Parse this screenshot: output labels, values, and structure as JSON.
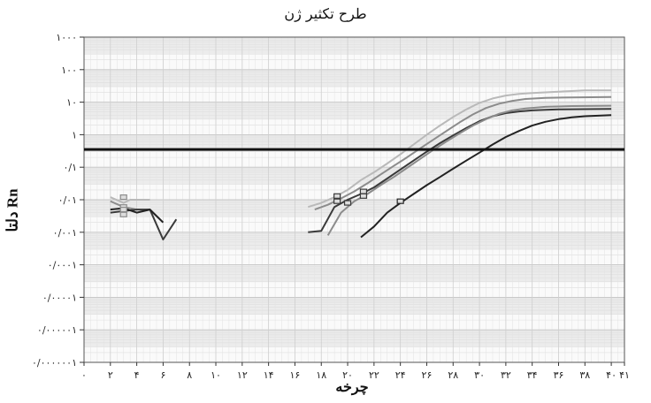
{
  "chart_data": {
    "type": "line",
    "title": "طرح تکثیر ژن",
    "xlabel": "چرخه",
    "ylabel": "دلتا Rn",
    "y_scale": "log",
    "xlim": [
      0,
      41
    ],
    "ylim": [
      1e-07,
      1000
    ],
    "x_ticks": [
      "۰",
      "۲",
      "۴",
      "۶",
      "۸",
      "۱۰",
      "۱۲",
      "۱۴",
      "۱۶",
      "۱۸",
      "۲۰",
      "۲۲",
      "۲۴",
      "۲۶",
      "۲۸",
      "۳۰",
      "۳۲",
      "۳۴",
      "۳۶",
      "۳۸",
      "۴۰",
      "۴۱"
    ],
    "x_tick_values": [
      0,
      2,
      4,
      6,
      8,
      10,
      12,
      14,
      16,
      18,
      20,
      22,
      24,
      26,
      28,
      30,
      32,
      34,
      36,
      38,
      40,
      41
    ],
    "y_ticks": [
      "۱۰۰۰",
      "۱۰۰",
      "۱۰",
      "۱",
      "۰/۱",
      "۰/۰۱",
      "۰/۰۰۱",
      "۰/۰۰۰۱",
      "۰/۰۰۰۰۱",
      "۰/۰۰۰۰۰۱",
      "۰/۰۰۰۰۰۰۱"
    ],
    "y_tick_values": [
      1000,
      100,
      10,
      1,
      0.1,
      0.01,
      0.001,
      0.0001,
      1e-05,
      1e-06,
      1e-07
    ],
    "threshold": 0.35,
    "grid": true,
    "colors": {
      "light": "#b9b9b9",
      "medium": "#8c8c8c",
      "dark": "#3a3a3a",
      "darker": "#222222",
      "threshold": "#111111",
      "grid": "#cfcfcf",
      "band": "#ececec"
    },
    "series": [
      {
        "color": "light",
        "x": [
          2,
          3,
          3.5,
          5
        ],
        "y": [
          0.012,
          0.008,
          0.01,
          0.01
        ]
      },
      {
        "color": "medium",
        "x": [
          2,
          3,
          4,
          5,
          6
        ],
        "y": [
          0.009,
          0.006,
          0.005,
          0.005,
          0.002
        ]
      },
      {
        "color": "dark",
        "x": [
          2,
          3,
          4,
          5,
          6,
          7
        ],
        "y": [
          0.004,
          0.0045,
          0.005,
          0.005,
          0.0006,
          0.0025
        ]
      },
      {
        "color": "darker",
        "x": [
          2,
          3,
          4,
          5,
          6
        ],
        "y": [
          0.005,
          0.0055,
          0.004,
          0.005,
          0.002
        ]
      },
      {
        "color": "light",
        "x": [
          17,
          18,
          19,
          20,
          21,
          22,
          23,
          24,
          25,
          26,
          27,
          28,
          29,
          30,
          31,
          32,
          33,
          34,
          35,
          36,
          37,
          38,
          39,
          40
        ],
        "y": [
          0.006,
          0.008,
          0.012,
          0.02,
          0.04,
          0.07,
          0.13,
          0.25,
          0.5,
          1.0,
          1.9,
          3.5,
          6.0,
          9.5,
          13,
          16,
          18,
          19,
          20,
          21,
          22,
          23,
          23,
          23
        ]
      },
      {
        "color": "medium",
        "x": [
          17.5,
          18.5,
          19.5,
          20.5,
          21.5,
          22.5,
          23.5,
          24.5,
          25.5,
          26.5,
          27.5,
          28.5,
          29.5,
          30.5,
          31.5,
          32.5,
          33.5,
          35,
          37,
          40
        ],
        "y": [
          0.005,
          0.007,
          0.011,
          0.018,
          0.032,
          0.06,
          0.11,
          0.2,
          0.38,
          0.7,
          1.3,
          2.4,
          4.2,
          6.6,
          9,
          11,
          12.5,
          13.5,
          14,
          14.5
        ]
      },
      {
        "color": "dark",
        "x": [
          17,
          18,
          19,
          20,
          21,
          22,
          23,
          24,
          25,
          26,
          27,
          28,
          29,
          30,
          31,
          32,
          33,
          34,
          35,
          36,
          38,
          40
        ],
        "y": [
          0.001,
          0.0011,
          0.006,
          0.01,
          0.015,
          0.024,
          0.045,
          0.085,
          0.16,
          0.3,
          0.55,
          0.95,
          1.6,
          2.6,
          3.7,
          4.6,
          5.2,
          5.6,
          5.8,
          6,
          6.1,
          6.2
        ]
      },
      {
        "color": "medium",
        "x": [
          18.5,
          19.5,
          20.5,
          21.5,
          22.5,
          23.5,
          24.5,
          25.5,
          26.5,
          27.5,
          28.5,
          29.5,
          30.5,
          31.5,
          32.5,
          33.5,
          35,
          37,
          40
        ],
        "y": [
          0.0008,
          0.004,
          0.009,
          0.015,
          0.028,
          0.05,
          0.095,
          0.18,
          0.34,
          0.62,
          1.1,
          1.9,
          3.0,
          4.4,
          5.6,
          6.4,
          7.2,
          7.6,
          7.8
        ]
      },
      {
        "color": "darker",
        "x": [
          21,
          22,
          23,
          24,
          25,
          26,
          27,
          28,
          29,
          30,
          31,
          32,
          33,
          34,
          35,
          36,
          37,
          38,
          40
        ],
        "y": [
          0.0007,
          0.0015,
          0.004,
          0.008,
          0.015,
          0.028,
          0.05,
          0.09,
          0.16,
          0.28,
          0.5,
          0.85,
          1.3,
          1.9,
          2.5,
          3.0,
          3.4,
          3.7,
          4.0
        ]
      }
    ],
    "markers": [
      {
        "x": 3,
        "y": 0.012,
        "color": "medium"
      },
      {
        "x": 3,
        "y": 0.006,
        "color": "medium"
      },
      {
        "x": 3,
        "y": 0.005,
        "color": "medium"
      },
      {
        "x": 3,
        "y": 0.0035,
        "color": "medium"
      },
      {
        "x": 19.2,
        "y": 0.013,
        "color": "dark"
      },
      {
        "x": 19.2,
        "y": 0.009,
        "color": "dark"
      },
      {
        "x": 20,
        "y": 0.008,
        "color": "dark"
      },
      {
        "x": 21.2,
        "y": 0.018,
        "color": "dark"
      },
      {
        "x": 21.2,
        "y": 0.013,
        "color": "dark"
      },
      {
        "x": 24,
        "y": 0.009,
        "color": "darker"
      }
    ]
  }
}
